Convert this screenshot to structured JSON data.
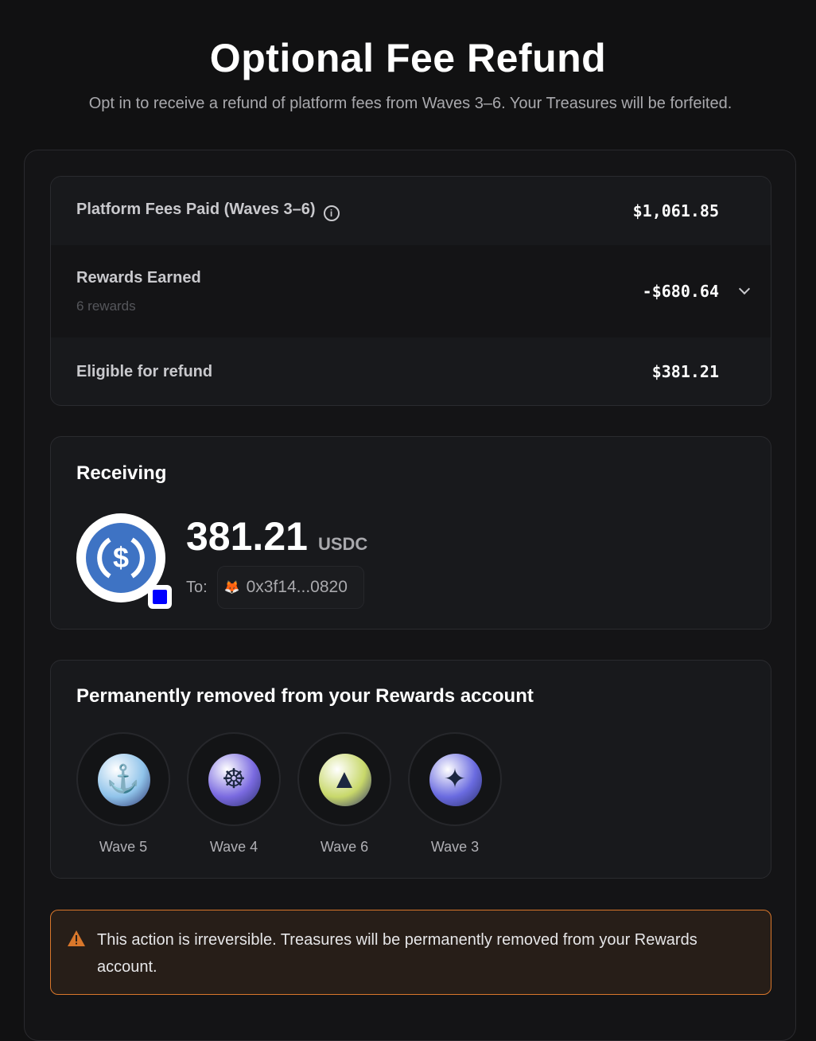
{
  "header": {
    "title": "Optional Fee Refund",
    "subtitle": "Opt in to receive a refund of platform fees from Waves 3–6. Your Treasures will be forfeited."
  },
  "summary": {
    "fees": {
      "label": "Platform Fees Paid (Waves 3–6)",
      "value": "$1,061.85",
      "icon": "info-icon"
    },
    "rewards": {
      "label": "Rewards Earned",
      "sub": "6 rewards",
      "value": "-$680.64",
      "icon": "chevron-down-icon"
    },
    "eligible": {
      "label": "Eligible for refund",
      "value": "$381.21"
    }
  },
  "receiving": {
    "heading": "Receiving",
    "amount": "381.21",
    "unit": "USDC",
    "to_label": "To:",
    "address": "0x3f14...0820",
    "token_color": "#3e73c4",
    "chain_color": "#0000ff"
  },
  "removed": {
    "heading": "Permanently removed from your Rewards account",
    "items": [
      {
        "label": "Wave 5",
        "icon": "anchor",
        "color": "#8fc3ea"
      },
      {
        "label": "Wave 4",
        "icon": "ship-wheel",
        "color": "#7a6ae0"
      },
      {
        "label": "Wave 6",
        "icon": "lighthouse",
        "color": "#c8d86a"
      },
      {
        "label": "Wave 3",
        "icon": "compass",
        "color": "#6a6be0"
      }
    ]
  },
  "warning": {
    "text": "This action is irreversible. Treasures will be permanently removed from your Rewards account.",
    "color": "#d9772b"
  }
}
